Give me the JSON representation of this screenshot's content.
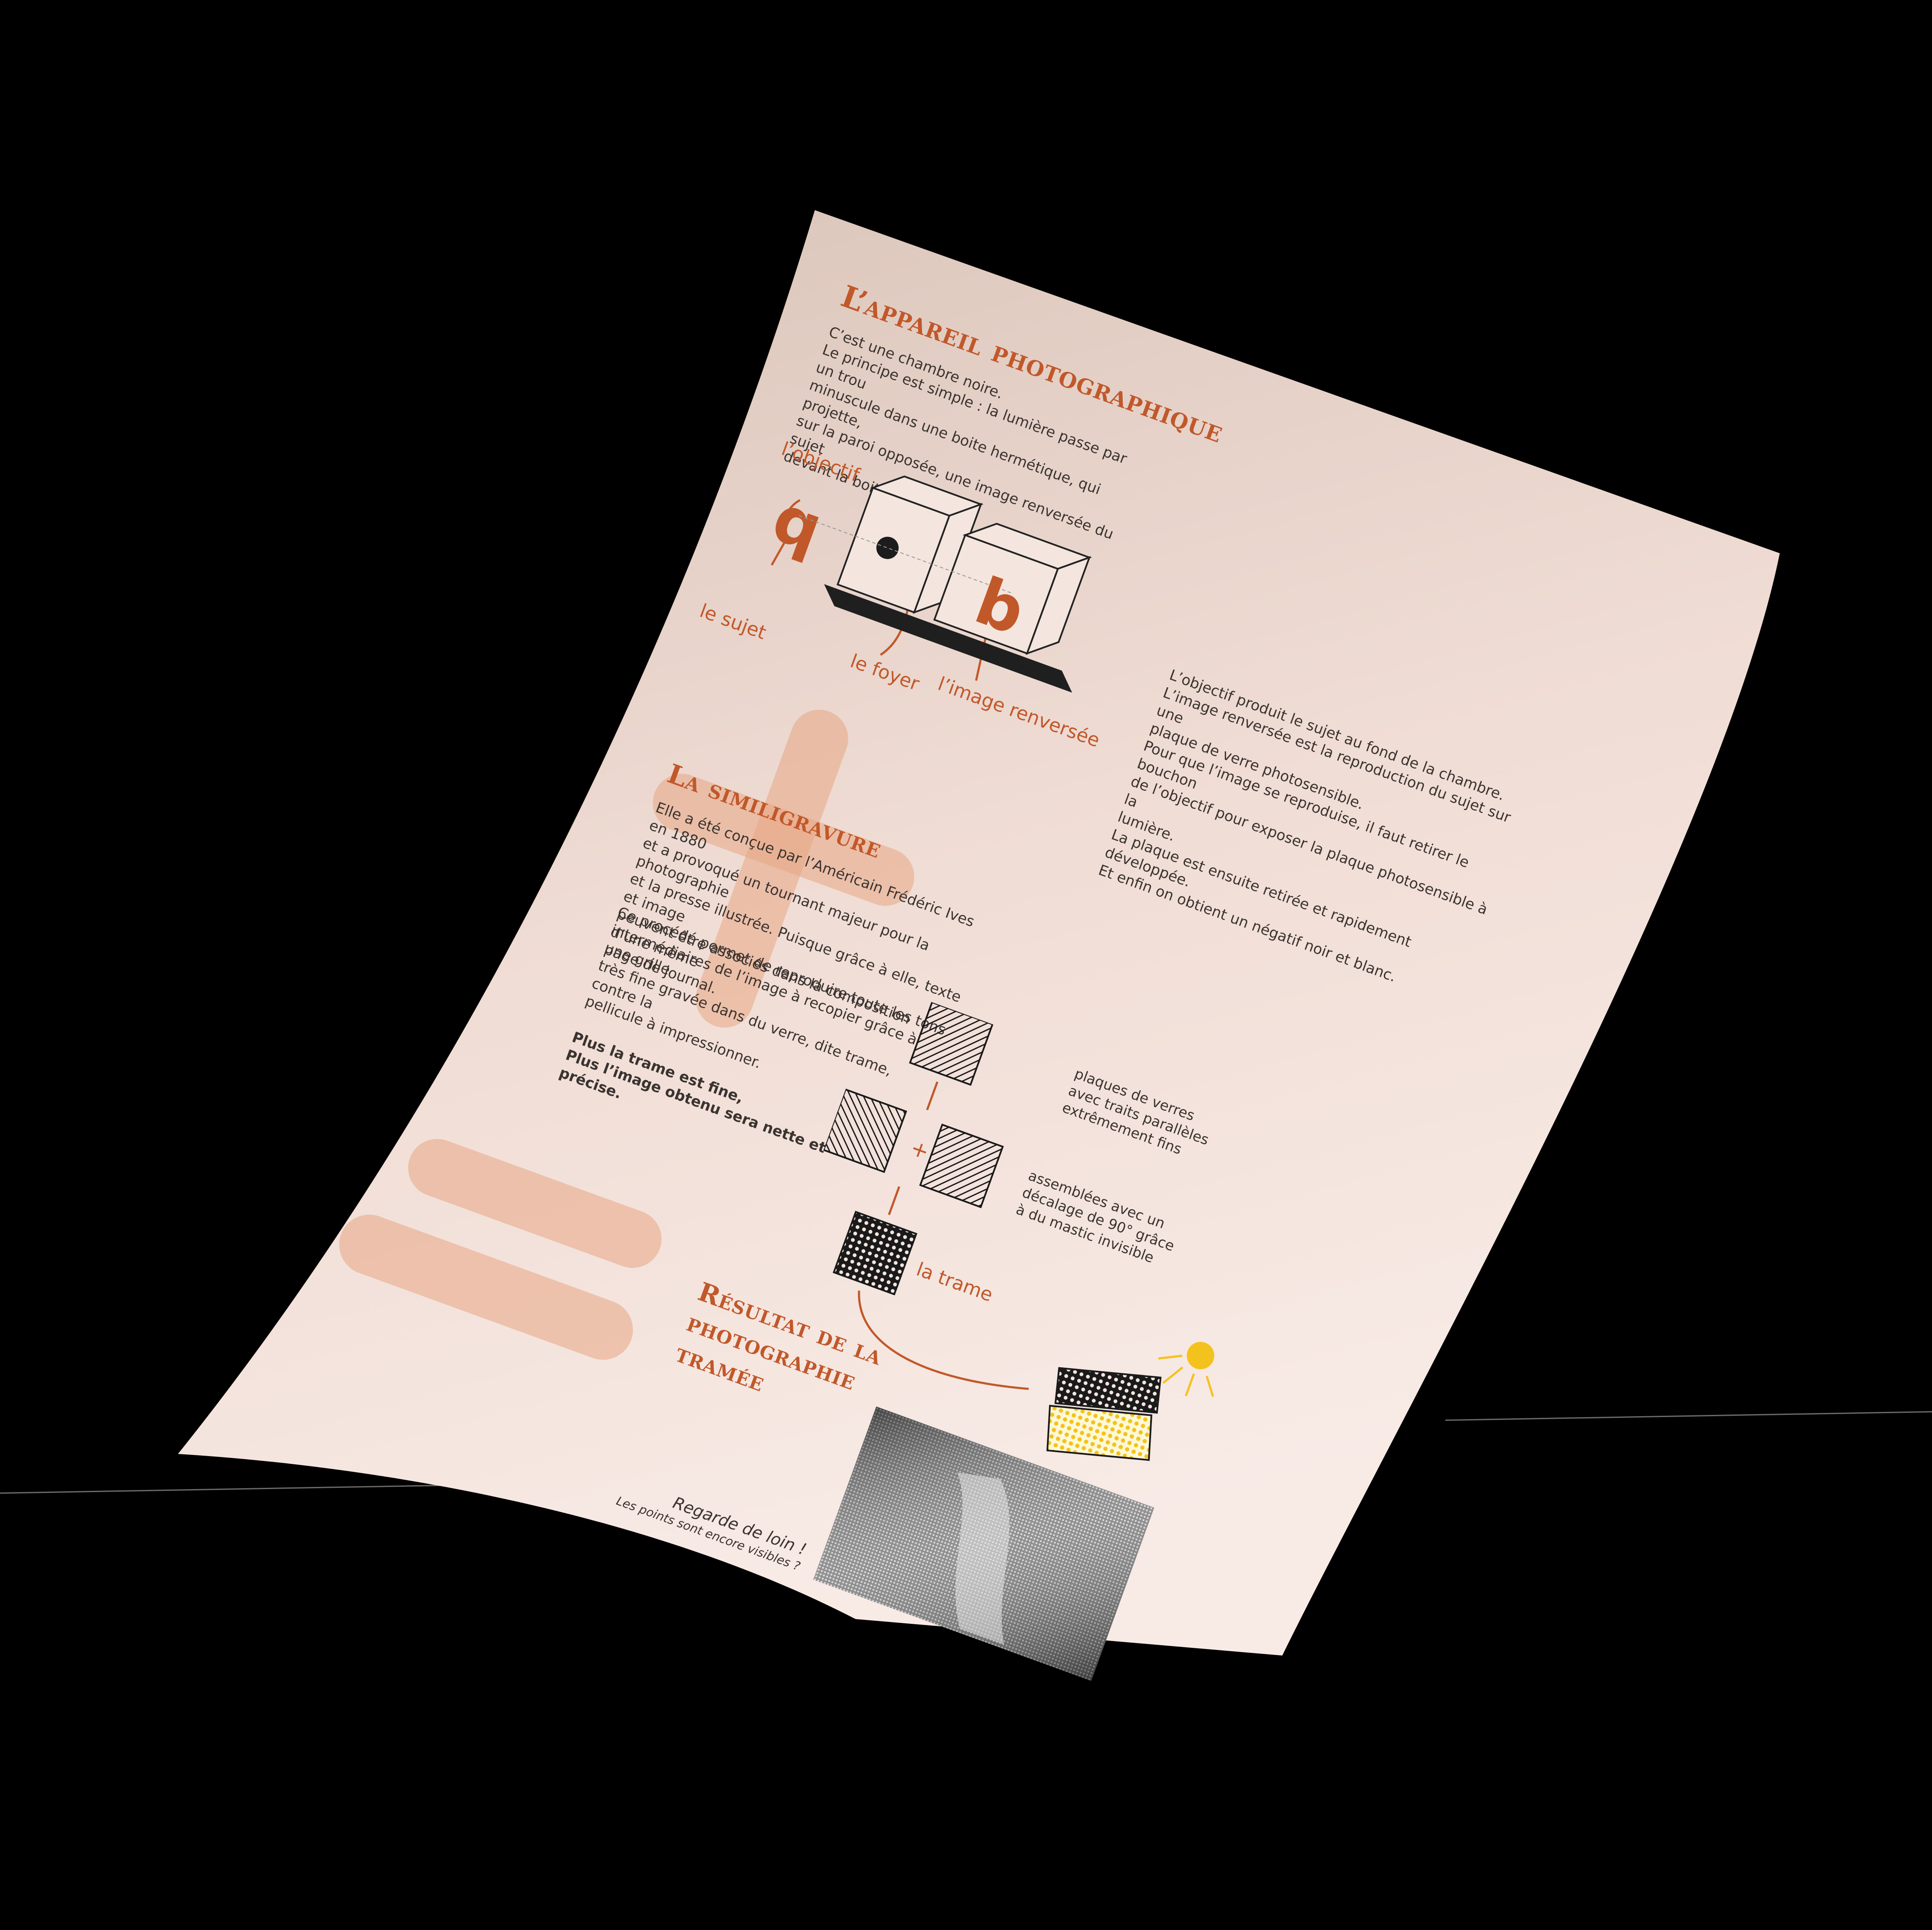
{
  "camera_section": {
    "title": "L’appareil photographique",
    "intro_lines": [
      "C’est une chambre noire.",
      "Le principe est simple : la lumière passe par un trou",
      "minuscule dans une boite hermétique, qui projette,",
      "sur la paroi opposée, une image renversée du sujet",
      "devant la boite."
    ],
    "labels": {
      "objectif": "l’objectif",
      "sujet": "le sujet",
      "foyer": "le foyer",
      "image": "l’image renversée"
    },
    "glyph_subject": "q",
    "glyph_image": "b",
    "explanation_lines": [
      "L’objectif produit le sujet au fond de la chambre.",
      "L’image renversée est la reproduction du sujet sur une",
      "plaque de verre photosensible.",
      "Pour que l’image se reproduise, il faut retirer le bouchon",
      "de l’objectif pour exposer la plaque photosensible à la",
      "lumière.",
      "La plaque est ensuite retirée et rapidement développée.",
      "Et enfin on obtient un négatif noir et blanc."
    ]
  },
  "simili_section": {
    "title": "La similigravure",
    "para1_lines": [
      "Elle a été conçue par l’Américain Frédéric Ives en 1880",
      "et a provoqué un tournant majeur pour la photographie",
      "et la presse illustrée. Puisque grâce à elle, texte et image",
      "peuvent être associés dans la composition d’une même",
      "page de journal."
    ],
    "para2_lines": [
      "Ce procédé permet de reproduire toute les tons",
      "intermédiaires de l’image à recopier grâce à une grille",
      "très fine gravée dans du verre, dite trame, contre la",
      "pellicule à impressionner."
    ],
    "note_lines": [
      "Plus la trame est fine,",
      "Plus l’image obtenu sera nette et précise."
    ],
    "plates_label_lines": [
      "plaques de verres",
      "avec traits parallèles",
      "extrêmement fins"
    ],
    "assembled_label_lines": [
      "assemblées avec un",
      "décalage de 90° grâce",
      "à du mastic invisible"
    ],
    "plus_sign": "+",
    "trame_label": "la trame"
  },
  "result_section": {
    "title_lines": [
      "Résultat de la",
      "photographie",
      "tramée"
    ],
    "caption_lines": [
      "Regarde de loin !",
      "Les points sont encore visibles ?"
    ]
  },
  "colors": {
    "background": "#000000",
    "paper": "#f4e5df",
    "accent": "#c1582a",
    "blob": "#e8a584",
    "sun": "#f4c21d"
  }
}
